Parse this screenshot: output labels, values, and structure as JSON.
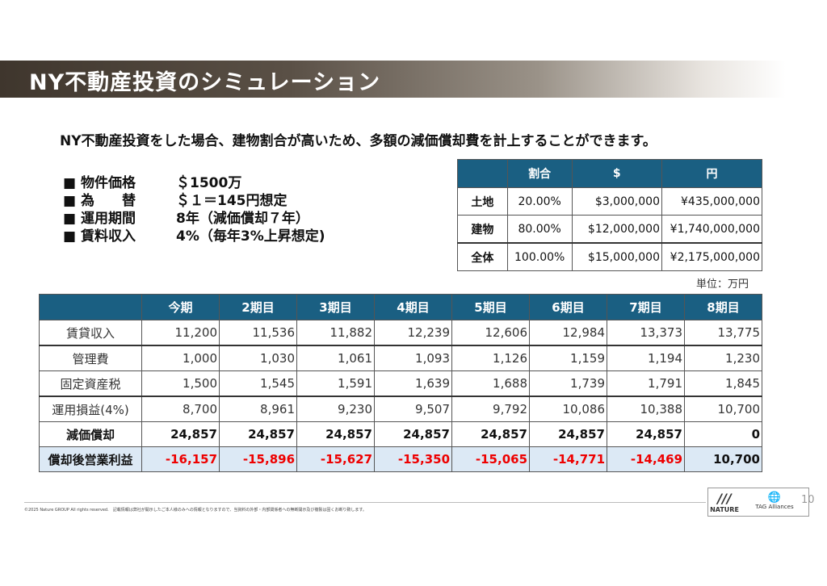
{
  "title": "NY不動産投資のシミュレーション",
  "lead": "NY不動産投資をした場合、建物割合が高いため、多額の減価償却費を計上することができます。",
  "bullets": [
    {
      "label": "■ 物件価格",
      "value": "＄1500万"
    },
    {
      "label": "■ 為　　替",
      "value": "＄１＝145円想定"
    },
    {
      "label": "■ 運用期間",
      "value": "8年（減価償却７年）"
    },
    {
      "label": "■ 賃料収入",
      "value": "4%（毎年3%上昇想定)"
    }
  ],
  "ratio_table": {
    "headers": [
      "",
      "割合",
      "$",
      "円"
    ],
    "rows": [
      [
        "土地",
        "20.00%",
        "$3,000,000",
        "¥435,000,000"
      ],
      [
        "建物",
        "80.00%",
        "$12,000,000",
        "¥1,740,000,000"
      ],
      [
        "全体",
        "100.00%",
        "$15,000,000",
        "¥2,175,000,000"
      ]
    ]
  },
  "unit": "単位：万円",
  "sim_table": {
    "headers": [
      "",
      "今期",
      "2期目",
      "3期目",
      "4期目",
      "5期目",
      "6期目",
      "7期目",
      "8期目"
    ],
    "rows": [
      [
        "賃貸収入",
        "11,200",
        "11,536",
        "11,882",
        "12,239",
        "12,606",
        "12,984",
        "13,373",
        "13,775"
      ],
      [
        "管理費",
        "1,000",
        "1,030",
        "1,061",
        "1,093",
        "1,126",
        "1,159",
        "1,194",
        "1,230"
      ],
      [
        "固定資産税",
        "1,500",
        "1,545",
        "1,591",
        "1,639",
        "1,688",
        "1,739",
        "1,791",
        "1,845"
      ],
      [
        "運用損益(4%)",
        "8,700",
        "8,961",
        "9,230",
        "9,507",
        "9,792",
        "10,086",
        "10,388",
        "10,700"
      ],
      [
        "減価償却",
        "24,857",
        "24,857",
        "24,857",
        "24,857",
        "24,857",
        "24,857",
        "24,857",
        "0"
      ],
      [
        "償却後営業利益",
        "-16,157",
        "-15,896",
        "-15,627",
        "-15,350",
        "-15,065",
        "-14,771",
        "-14,469",
        "10,700"
      ]
    ]
  },
  "footer": "©2025 Nature GROUP All rights reserved.　記載情報は弊社が開示したご本人様のみへの情報となりますので、当資料の外部・内部関係者への無断開示及び複製は固くお断り致します。",
  "logos": {
    "nature": "NATURE",
    "tag": "TAG Alliances"
  },
  "page_number": "10",
  "colors": {
    "header": "#1a5f82",
    "negative": "#ee0000",
    "highlight_row": "#dce9f5"
  }
}
